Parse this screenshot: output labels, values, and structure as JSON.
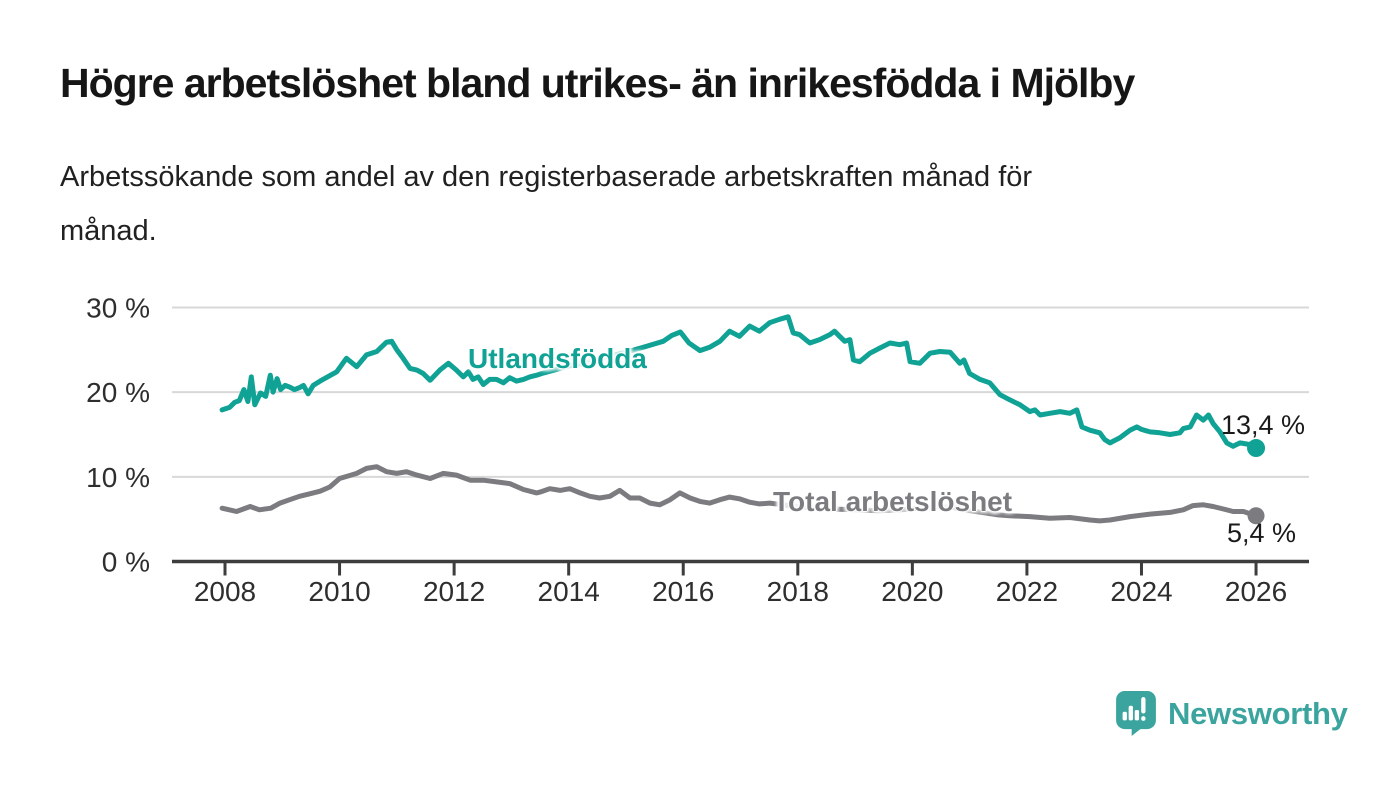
{
  "header": {
    "title": "Högre arbetslöshet bland utrikes- än inrikesfödda i Mjölby",
    "subtitle_line1": "Arbetssökande som andel av den registerbaserade arbetskraften månad för",
    "subtitle_line2": "månad."
  },
  "footer": {
    "brand": "Newsworthy"
  },
  "colors": {
    "teal_series": "#10a295",
    "gray_series": "#7b7b80",
    "logo_teal": "#3ba49e",
    "grid_line": "#d8d8d8",
    "axis_line": "#3d3d3d",
    "tick_text": "#2e2e2e",
    "value_label_text": "#1a1a1a"
  },
  "chart_data": {
    "type": "line",
    "title": "Högre arbetslöshet bland utrikes- än inrikesfödda i Mjölby",
    "subtitle": "Arbetssökande som andel av den registerbaserade arbetskraften månad för månad.",
    "xlabel": "",
    "ylabel": "",
    "grid": "horizontal",
    "legend_position": "inline-labels",
    "xlim": [
      2007.9,
      2026.9
    ],
    "ylim": [
      0,
      31
    ],
    "x_ticks": [
      2008,
      2010,
      2012,
      2014,
      2016,
      2018,
      2020,
      2022,
      2024,
      2026
    ],
    "x_tick_labels": [
      "2008",
      "2010",
      "2012",
      "2014",
      "2016",
      "2018",
      "2020",
      "2022",
      "2024",
      "2026"
    ],
    "y_ticks": [
      0,
      10,
      20,
      30
    ],
    "y_tick_labels": [
      "0 %",
      "10 %",
      "20 %",
      "30 %"
    ],
    "unit": "% av registerbaserad arbetskraft, månadsvärden",
    "series": [
      {
        "id": "utlandsfodda",
        "name": "Utlandsfödda",
        "color": "#10a295",
        "end_value": 13.4,
        "end_label": "13,4 %",
        "points": [
          [
            2007.95,
            17.9
          ],
          [
            2008.08,
            18.2
          ],
          [
            2008.17,
            18.8
          ],
          [
            2008.25,
            19.0
          ],
          [
            2008.33,
            20.3
          ],
          [
            2008.4,
            18.9
          ],
          [
            2008.46,
            21.8
          ],
          [
            2008.52,
            18.5
          ],
          [
            2008.62,
            19.9
          ],
          [
            2008.71,
            19.5
          ],
          [
            2008.79,
            22.0
          ],
          [
            2008.84,
            20.0
          ],
          [
            2008.91,
            21.6
          ],
          [
            2008.97,
            20.3
          ],
          [
            2009.05,
            20.8
          ],
          [
            2009.13,
            20.6
          ],
          [
            2009.21,
            20.3
          ],
          [
            2009.29,
            20.5
          ],
          [
            2009.37,
            20.8
          ],
          [
            2009.45,
            19.8
          ],
          [
            2009.54,
            20.8
          ],
          [
            2009.66,
            21.3
          ],
          [
            2009.79,
            21.8
          ],
          [
            2009.95,
            22.4
          ],
          [
            2010.12,
            24.0
          ],
          [
            2010.3,
            23.0
          ],
          [
            2010.47,
            24.4
          ],
          [
            2010.65,
            24.8
          ],
          [
            2010.82,
            25.9
          ],
          [
            2010.91,
            26.0
          ],
          [
            2011.0,
            25.0
          ],
          [
            2011.11,
            24.0
          ],
          [
            2011.23,
            22.8
          ],
          [
            2011.35,
            22.6
          ],
          [
            2011.46,
            22.2
          ],
          [
            2011.58,
            21.4
          ],
          [
            2011.75,
            22.6
          ],
          [
            2011.9,
            23.4
          ],
          [
            2012.04,
            22.6
          ],
          [
            2012.16,
            21.8
          ],
          [
            2012.25,
            22.4
          ],
          [
            2012.33,
            21.5
          ],
          [
            2012.42,
            21.8
          ],
          [
            2012.51,
            20.9
          ],
          [
            2012.62,
            21.5
          ],
          [
            2012.74,
            21.5
          ],
          [
            2012.86,
            21.1
          ],
          [
            2012.97,
            21.7
          ],
          [
            2013.09,
            21.3
          ],
          [
            2013.21,
            21.5
          ],
          [
            2013.32,
            21.8
          ],
          [
            2013.44,
            22.0
          ],
          [
            2013.53,
            22.2
          ],
          [
            2013.75,
            22.6
          ],
          [
            2014.0,
            23.1
          ],
          [
            2014.25,
            23.4
          ],
          [
            2014.5,
            23.8
          ],
          [
            2014.75,
            24.3
          ],
          [
            2015.0,
            24.7
          ],
          [
            2015.25,
            25.2
          ],
          [
            2015.5,
            25.7
          ],
          [
            2015.65,
            26.0
          ],
          [
            2015.8,
            26.7
          ],
          [
            2015.95,
            27.1
          ],
          [
            2016.1,
            25.8
          ],
          [
            2016.29,
            24.9
          ],
          [
            2016.46,
            25.3
          ],
          [
            2016.64,
            26.0
          ],
          [
            2016.81,
            27.2
          ],
          [
            2016.98,
            26.6
          ],
          [
            2017.16,
            27.8
          ],
          [
            2017.33,
            27.2
          ],
          [
            2017.51,
            28.2
          ],
          [
            2017.68,
            28.6
          ],
          [
            2017.83,
            28.9
          ],
          [
            2017.92,
            27.0
          ],
          [
            2018.03,
            26.8
          ],
          [
            2018.21,
            25.8
          ],
          [
            2018.38,
            26.2
          ],
          [
            2018.56,
            26.8
          ],
          [
            2018.64,
            27.2
          ],
          [
            2018.73,
            26.6
          ],
          [
            2018.82,
            26.0
          ],
          [
            2018.91,
            26.2
          ],
          [
            2018.97,
            23.8
          ],
          [
            2019.08,
            23.6
          ],
          [
            2019.26,
            24.6
          ],
          [
            2019.43,
            25.2
          ],
          [
            2019.61,
            25.8
          ],
          [
            2019.78,
            25.6
          ],
          [
            2019.9,
            25.8
          ],
          [
            2019.96,
            23.6
          ],
          [
            2020.13,
            23.4
          ],
          [
            2020.31,
            24.6
          ],
          [
            2020.48,
            24.8
          ],
          [
            2020.66,
            24.7
          ],
          [
            2020.83,
            23.4
          ],
          [
            2020.9,
            23.8
          ],
          [
            2021.0,
            22.2
          ],
          [
            2021.18,
            21.5
          ],
          [
            2021.35,
            21.1
          ],
          [
            2021.53,
            19.7
          ],
          [
            2021.7,
            19.1
          ],
          [
            2021.88,
            18.5
          ],
          [
            2022.05,
            17.7
          ],
          [
            2022.14,
            17.9
          ],
          [
            2022.23,
            17.3
          ],
          [
            2022.4,
            17.5
          ],
          [
            2022.58,
            17.7
          ],
          [
            2022.75,
            17.5
          ],
          [
            2022.87,
            17.9
          ],
          [
            2022.96,
            15.9
          ],
          [
            2023.1,
            15.5
          ],
          [
            2023.27,
            15.2
          ],
          [
            2023.36,
            14.4
          ],
          [
            2023.45,
            14.0
          ],
          [
            2023.62,
            14.6
          ],
          [
            2023.8,
            15.5
          ],
          [
            2023.92,
            15.9
          ],
          [
            2024.0,
            15.6
          ],
          [
            2024.15,
            15.3
          ],
          [
            2024.32,
            15.2
          ],
          [
            2024.5,
            15.0
          ],
          [
            2024.67,
            15.2
          ],
          [
            2024.73,
            15.7
          ],
          [
            2024.85,
            15.9
          ],
          [
            2024.96,
            17.3
          ],
          [
            2025.08,
            16.7
          ],
          [
            2025.17,
            17.3
          ],
          [
            2025.25,
            16.3
          ],
          [
            2025.37,
            15.3
          ],
          [
            2025.49,
            14.0
          ],
          [
            2025.6,
            13.6
          ],
          [
            2025.72,
            14.0
          ],
          [
            2025.9,
            13.8
          ],
          [
            2026.0,
            13.4
          ]
        ]
      },
      {
        "id": "total-arbetsloshet",
        "name": "Total arbetslöshet",
        "color": "#7b7b80",
        "end_value": 5.4,
        "end_label": "5,4 %",
        "points": [
          [
            2007.95,
            6.3
          ],
          [
            2008.2,
            5.9
          ],
          [
            2008.44,
            6.5
          ],
          [
            2008.6,
            6.1
          ],
          [
            2008.8,
            6.3
          ],
          [
            2008.96,
            6.9
          ],
          [
            2009.13,
            7.3
          ],
          [
            2009.3,
            7.7
          ],
          [
            2009.48,
            8.0
          ],
          [
            2009.66,
            8.3
          ],
          [
            2009.83,
            8.8
          ],
          [
            2010.0,
            9.8
          ],
          [
            2010.2,
            10.2
          ],
          [
            2010.3,
            10.4
          ],
          [
            2010.47,
            11.0
          ],
          [
            2010.65,
            11.2
          ],
          [
            2010.82,
            10.6
          ],
          [
            2011.0,
            10.4
          ],
          [
            2011.17,
            10.6
          ],
          [
            2011.35,
            10.2
          ],
          [
            2011.58,
            9.8
          ],
          [
            2011.81,
            10.4
          ],
          [
            2012.04,
            10.2
          ],
          [
            2012.28,
            9.6
          ],
          [
            2012.51,
            9.6
          ],
          [
            2012.74,
            9.4
          ],
          [
            2012.97,
            9.2
          ],
          [
            2013.21,
            8.5
          ],
          [
            2013.44,
            8.1
          ],
          [
            2013.5,
            8.2
          ],
          [
            2013.67,
            8.6
          ],
          [
            2013.85,
            8.4
          ],
          [
            2014.02,
            8.6
          ],
          [
            2014.2,
            8.1
          ],
          [
            2014.37,
            7.7
          ],
          [
            2014.54,
            7.5
          ],
          [
            2014.72,
            7.7
          ],
          [
            2014.89,
            8.4
          ],
          [
            2015.07,
            7.5
          ],
          [
            2015.24,
            7.5
          ],
          [
            2015.42,
            6.9
          ],
          [
            2015.59,
            6.7
          ],
          [
            2015.77,
            7.3
          ],
          [
            2015.94,
            8.1
          ],
          [
            2016.12,
            7.5
          ],
          [
            2016.29,
            7.1
          ],
          [
            2016.46,
            6.9
          ],
          [
            2016.64,
            7.3
          ],
          [
            2016.81,
            7.6
          ],
          [
            2016.98,
            7.4
          ],
          [
            2017.16,
            7.0
          ],
          [
            2017.33,
            6.8
          ],
          [
            2017.51,
            6.9
          ],
          [
            2017.75,
            6.7
          ],
          [
            2018.0,
            6.5
          ],
          [
            2018.3,
            6.3
          ],
          [
            2018.6,
            6.2
          ],
          [
            2019.0,
            6.1
          ],
          [
            2019.4,
            6.0
          ],
          [
            2019.8,
            6.1
          ],
          [
            2020.1,
            6.3
          ],
          [
            2020.4,
            6.5
          ],
          [
            2020.7,
            6.4
          ],
          [
            2021.0,
            6.0
          ],
          [
            2021.3,
            5.7
          ],
          [
            2021.5,
            5.5
          ],
          [
            2021.7,
            5.4
          ],
          [
            2022.05,
            5.3
          ],
          [
            2022.4,
            5.1
          ],
          [
            2022.75,
            5.2
          ],
          [
            2023.1,
            4.9
          ],
          [
            2023.27,
            4.8
          ],
          [
            2023.45,
            4.9
          ],
          [
            2023.8,
            5.3
          ],
          [
            2024.15,
            5.6
          ],
          [
            2024.5,
            5.8
          ],
          [
            2024.73,
            6.1
          ],
          [
            2024.9,
            6.6
          ],
          [
            2025.08,
            6.7
          ],
          [
            2025.25,
            6.5
          ],
          [
            2025.43,
            6.2
          ],
          [
            2025.6,
            5.9
          ],
          [
            2025.78,
            5.9
          ],
          [
            2026.0,
            5.4
          ]
        ]
      }
    ]
  }
}
